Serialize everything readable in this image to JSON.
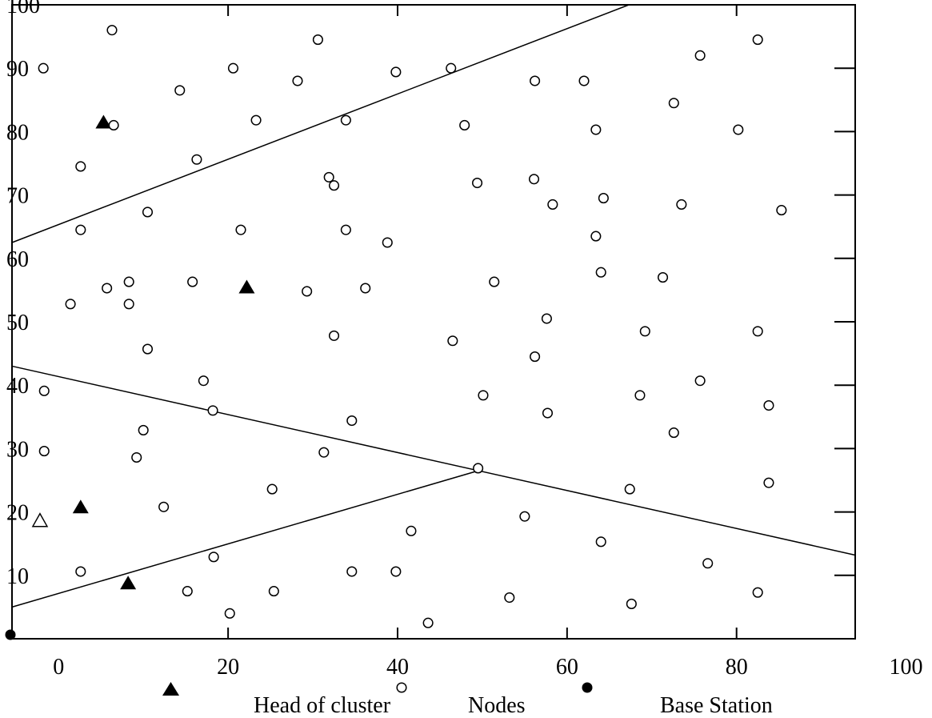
{
  "chart_data": {
    "type": "scatter",
    "xlim": [
      -5.5,
      94
    ],
    "ylim": [
      0,
      100
    ],
    "x_ticks": [
      {
        "label": "0",
        "value": 0
      },
      {
        "label": "20",
        "value": 20
      },
      {
        "label": "40",
        "value": 40
      },
      {
        "label": "60",
        "value": 60
      },
      {
        "label": "80",
        "value": 80
      },
      {
        "label": "100",
        "value": 100
      }
    ],
    "y_ticks": [
      {
        "label": "10",
        "value": 10
      },
      {
        "label": "20",
        "value": 20
      },
      {
        "label": "30",
        "value": 30
      },
      {
        "label": "40",
        "value": 40
      },
      {
        "label": "50",
        "value": 50
      },
      {
        "label": "60",
        "value": 60
      },
      {
        "label": "70",
        "value": 70
      },
      {
        "label": "80",
        "value": 80
      },
      {
        "label": "90",
        "value": 90
      },
      {
        "label": "100",
        "value": 100
      }
    ],
    "legend": {
      "placement": "bottom",
      "items": [
        {
          "label": "Head of cluster",
          "marker": "filled-triangle"
        },
        {
          "label": "Nodes",
          "marker": "open-circle"
        },
        {
          "label": "Base Station",
          "marker": "filled-circle"
        }
      ]
    },
    "series": [
      {
        "name": "Head of cluster",
        "marker": "filled-triangle",
        "points": [
          [
            5.3,
            81.5
          ],
          [
            22.2,
            55.5
          ],
          [
            2.6,
            20.8
          ],
          [
            8.2,
            8.8
          ]
        ]
      },
      {
        "name": "Nodes",
        "marker": "open-circle",
        "points": [
          [
            6.3,
            96
          ],
          [
            30.6,
            94.5
          ],
          [
            82.5,
            94.5
          ],
          [
            -1.8,
            90
          ],
          [
            20.6,
            90
          ],
          [
            39.8,
            89.4
          ],
          [
            46.3,
            90
          ],
          [
            75.7,
            92
          ],
          [
            28.2,
            88
          ],
          [
            56.2,
            88
          ],
          [
            62,
            88
          ],
          [
            14.3,
            86.5
          ],
          [
            72.6,
            84.5
          ],
          [
            23.3,
            81.8
          ],
          [
            33.9,
            81.8
          ],
          [
            6.5,
            81
          ],
          [
            47.9,
            81
          ],
          [
            63.4,
            80.3
          ],
          [
            80.2,
            80.3
          ],
          [
            16.3,
            75.6
          ],
          [
            2.6,
            74.5
          ],
          [
            31.9,
            72.8
          ],
          [
            32.5,
            71.5
          ],
          [
            49.4,
            71.9
          ],
          [
            56.1,
            72.5
          ],
          [
            58.3,
            68.5
          ],
          [
            64.3,
            69.5
          ],
          [
            73.5,
            68.5
          ],
          [
            85.3,
            67.6
          ],
          [
            10.5,
            67.3
          ],
          [
            2.6,
            64.5
          ],
          [
            21.5,
            64.5
          ],
          [
            33.9,
            64.5
          ],
          [
            38.8,
            62.5
          ],
          [
            63.4,
            63.5
          ],
          [
            8.3,
            56.3
          ],
          [
            5.7,
            55.3
          ],
          [
            15.8,
            56.3
          ],
          [
            29.3,
            54.8
          ],
          [
            36.2,
            55.3
          ],
          [
            51.4,
            56.3
          ],
          [
            64,
            57.8
          ],
          [
            71.3,
            57
          ],
          [
            1.4,
            52.8
          ],
          [
            8.3,
            52.8
          ],
          [
            57.6,
            50.5
          ],
          [
            69.2,
            48.5
          ],
          [
            82.5,
            48.5
          ],
          [
            32.5,
            47.8
          ],
          [
            46.5,
            47
          ],
          [
            10.5,
            45.7
          ],
          [
            56.2,
            44.5
          ],
          [
            17.1,
            40.7
          ],
          [
            75.7,
            40.7
          ],
          [
            -1.7,
            39.1
          ],
          [
            50.1,
            38.4
          ],
          [
            68.6,
            38.4
          ],
          [
            18.2,
            36
          ],
          [
            57.7,
            35.6
          ],
          [
            83.8,
            36.8
          ],
          [
            34.6,
            34.4
          ],
          [
            10,
            32.9
          ],
          [
            72.6,
            32.5
          ],
          [
            9.2,
            28.6
          ],
          [
            31.3,
            29.4
          ],
          [
            -1.7,
            29.6
          ],
          [
            49.5,
            26.9
          ],
          [
            25.2,
            23.6
          ],
          [
            67.4,
            23.6
          ],
          [
            83.8,
            24.6
          ],
          [
            12.4,
            20.8
          ],
          [
            55,
            19.3
          ],
          [
            41.6,
            17
          ],
          [
            64,
            15.3
          ],
          [
            18.3,
            12.9
          ],
          [
            76.6,
            11.9
          ],
          [
            2.6,
            10.6
          ],
          [
            34.6,
            10.6
          ],
          [
            39.8,
            10.6
          ],
          [
            15.2,
            7.5
          ],
          [
            25.4,
            7.5
          ],
          [
            53.2,
            6.5
          ],
          [
            67.6,
            5.5
          ],
          [
            82.5,
            7.3
          ],
          [
            20.2,
            4
          ],
          [
            43.6,
            2.5
          ]
        ]
      },
      {
        "name": "Base Station",
        "marker": "filled-circle",
        "points": [
          [
            -5.5,
            0
          ]
        ]
      },
      {
        "name": "",
        "marker": "open-triangle",
        "points": [
          [
            -2.2,
            18.6
          ]
        ]
      }
    ],
    "boundary_lines": [
      {
        "from": [
          -5.5,
          62.5
        ],
        "to": [
          67.3,
          100
        ]
      },
      {
        "from": [
          -5.5,
          43
        ],
        "to": [
          94,
          13.2
        ]
      },
      {
        "from": [
          -5.5,
          5
        ],
        "to": [
          49.5,
          26.5
        ]
      }
    ]
  }
}
